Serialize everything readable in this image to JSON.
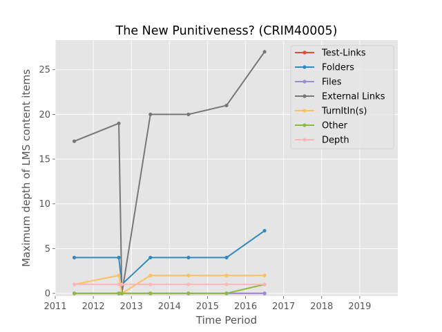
{
  "chart_data": {
    "type": "line",
    "title": "The New Punitiveness? (CRIM40005)",
    "xlabel": "Time Period",
    "ylabel": "Maximum depth of LMS content items",
    "xlim": [
      2011.0,
      2020.0
    ],
    "ylim": [
      -0.3,
      28.3
    ],
    "xticks": [
      2011,
      2012,
      2013,
      2014,
      2015,
      2016,
      2017,
      2018,
      2019
    ],
    "xtick_labels": [
      "2011",
      "2012",
      "2013",
      "2014",
      "2015",
      "2016",
      "2017",
      "2018",
      "2019"
    ],
    "yticks": [
      0,
      5,
      10,
      15,
      20,
      25
    ],
    "ytick_labels": [
      "0",
      "5",
      "10",
      "15",
      "20",
      "25"
    ],
    "grid": true,
    "legend_position": "top-right",
    "x": [
      2011.5,
      2012.67,
      2012.75,
      2013.5,
      2014.5,
      2015.5,
      2016.5
    ],
    "series": [
      {
        "name": "Test-Links",
        "color": "#E24A33",
        "values": [
          0,
          0,
          0,
          0,
          0,
          0,
          0
        ]
      },
      {
        "name": "Folders",
        "color": "#348ABD",
        "values": [
          4,
          4,
          1,
          4,
          4,
          4,
          7
        ]
      },
      {
        "name": "Files",
        "color": "#988ED5",
        "values": [
          0,
          0,
          0,
          0,
          0,
          0,
          0
        ]
      },
      {
        "name": "External Links",
        "color": "#777777",
        "values": [
          17,
          19,
          0,
          20,
          20,
          21,
          27
        ]
      },
      {
        "name": "TurnItIn(s)",
        "color": "#FBC15E",
        "values": [
          1,
          2,
          0,
          2,
          2,
          2,
          2
        ]
      },
      {
        "name": "Other",
        "color": "#8EBA42",
        "values": [
          0,
          0,
          0,
          0,
          0,
          0,
          1
        ]
      },
      {
        "name": "Depth",
        "color": "#FFB5B8",
        "values": [
          1,
          1,
          1,
          1,
          1,
          1,
          1
        ]
      }
    ]
  }
}
